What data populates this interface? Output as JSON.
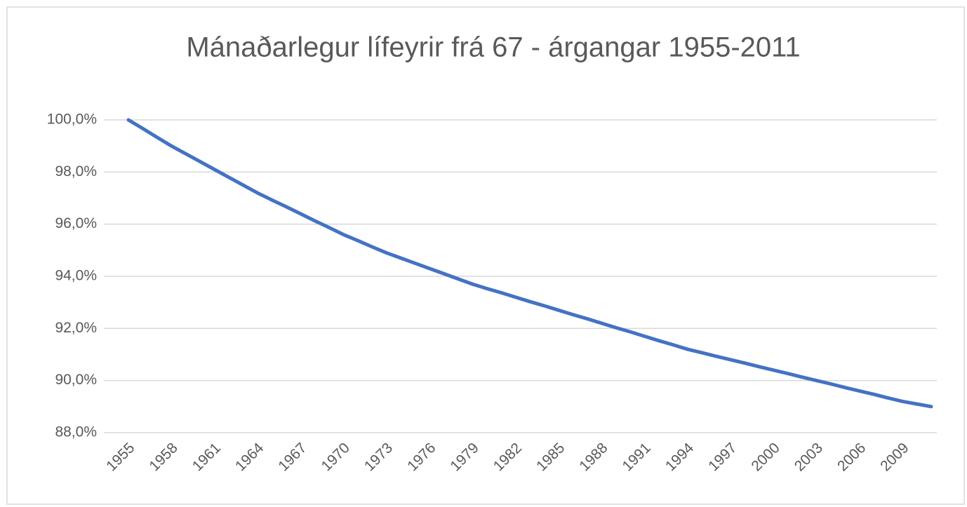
{
  "chart_data": {
    "type": "line",
    "title": "Mánaðarlegur lífeyrir frá 67 - árgangar 1955-2011",
    "categories": [
      "1955",
      null,
      null,
      "1958",
      null,
      null,
      "1961",
      null,
      null,
      "1964",
      null,
      null,
      "1967",
      null,
      null,
      "1970",
      null,
      null,
      "1973",
      null,
      null,
      "1976",
      null,
      null,
      "1979",
      null,
      null,
      "1982",
      null,
      null,
      "1985",
      null,
      null,
      "1988",
      null,
      null,
      "1991",
      null,
      null,
      "1994",
      null,
      null,
      "1997",
      null,
      null,
      "2000",
      null,
      null,
      "2003",
      null,
      null,
      "2006",
      null,
      null,
      "2009",
      null,
      null
    ],
    "series": [
      {
        "color": "#4472c4",
        "values": [
          100.0,
          99.67,
          99.33,
          99.0,
          98.7,
          98.4,
          98.1,
          97.8,
          97.5,
          97.2,
          96.93,
          96.67,
          96.4,
          96.13,
          95.87,
          95.6,
          95.37,
          95.13,
          94.9,
          94.7,
          94.5,
          94.3,
          94.1,
          93.9,
          93.7,
          93.53,
          93.37,
          93.2,
          93.03,
          92.87,
          92.7,
          92.53,
          92.37,
          92.2,
          92.03,
          91.87,
          91.7,
          91.53,
          91.37,
          91.2,
          91.07,
          90.93,
          90.8,
          90.67,
          90.53,
          90.4,
          90.27,
          90.13,
          90.0,
          89.87,
          89.73,
          89.6,
          89.47,
          89.33,
          89.2,
          89.1,
          89.0
        ]
      }
    ],
    "ylim": [
      88,
      100
    ],
    "yticks": [
      {
        "value": 88,
        "label": "88,0%"
      },
      {
        "value": 90,
        "label": "90,0%"
      },
      {
        "value": 92,
        "label": "92,0%"
      },
      {
        "value": 94,
        "label": "94,0%"
      },
      {
        "value": 96,
        "label": "96,0%"
      },
      {
        "value": 98,
        "label": "98,0%"
      },
      {
        "value": 100,
        "label": "100,0%"
      }
    ],
    "grid": true
  }
}
